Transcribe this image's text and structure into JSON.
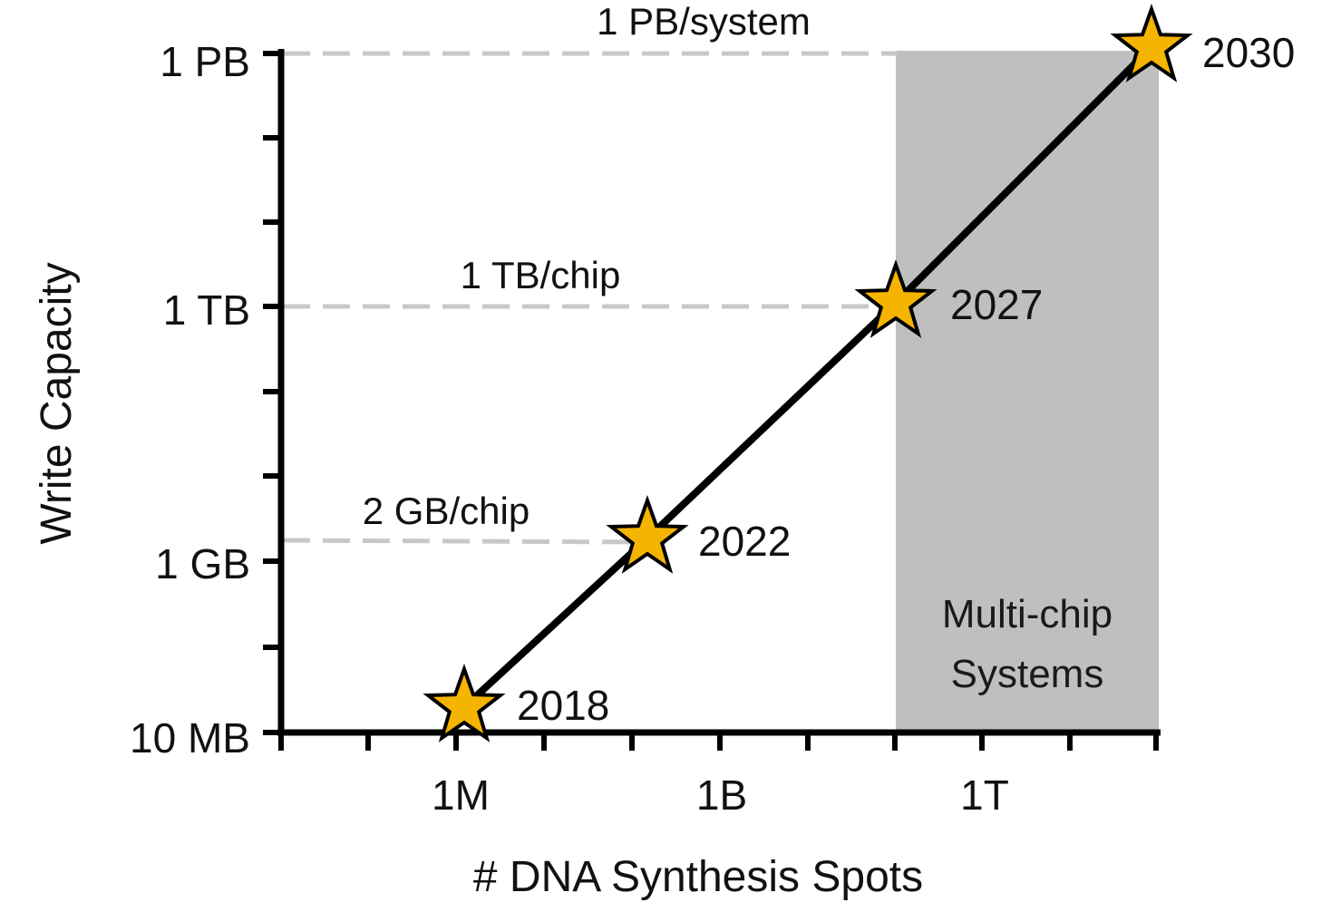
{
  "chart_data": {
    "type": "line",
    "xlabel": "# DNA Synthesis Spots",
    "ylabel": "Write Capacity",
    "x_scale": "log",
    "y_scale": "log",
    "x_ticks": [
      "1M",
      "1B",
      "1T"
    ],
    "y_ticks": [
      "10 MB",
      "1 GB",
      "1 TB",
      "1 PB"
    ],
    "series": [
      {
        "points": [
          {
            "label": "2018",
            "x": "~1.4M",
            "y": "~20 MB"
          },
          {
            "label": "2022",
            "x": "~200M",
            "y": "2 GB"
          },
          {
            "label": "2027",
            "x": "~100B",
            "y": "1 TB"
          },
          {
            "label": "2030",
            "x": "~100T",
            "y": "1 PB"
          }
        ]
      }
    ],
    "reference_lines": [
      {
        "label": "1 PB/system",
        "y": "1 PB"
      },
      {
        "label": "1 TB/chip",
        "y": "1 TB"
      },
      {
        "label": "2 GB/chip",
        "y": "2 GB"
      }
    ],
    "shaded_region": {
      "label_line1": "Multi-chip",
      "label_line2": "Systems",
      "color": "#bfbfbf"
    },
    "marker_color": "#f5b400",
    "line_color": "#000000"
  }
}
